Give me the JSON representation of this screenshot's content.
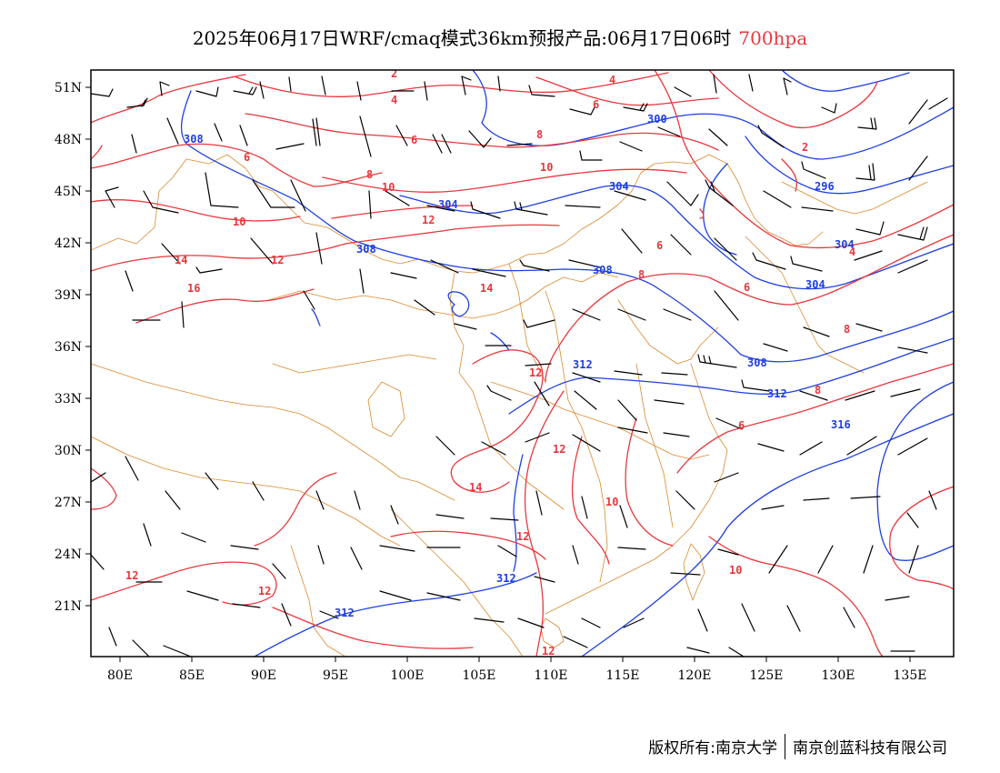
{
  "title": {
    "main": "2025年06月17日WRF/cmaq模式36km预报产品:06月17日06时",
    "level": "700hpa",
    "level_color": "#e8383d"
  },
  "map": {
    "lon_range": [
      78,
      138
    ],
    "lat_range": [
      17.5,
      52
    ],
    "lat_ticks": [
      "51N",
      "48N",
      "45N",
      "42N",
      "39N",
      "36N",
      "33N",
      "30N",
      "27N",
      "24N",
      "21N"
    ],
    "lon_ticks": [
      "80E",
      "85E",
      "90E",
      "95E",
      "100E",
      "105E",
      "110E",
      "115E",
      "120E",
      "125E",
      "130E",
      "135E"
    ],
    "colors": {
      "height": "#1f3fe0",
      "temperature": "#e8383d",
      "boundary": "#d9892d",
      "wind": "#000000"
    },
    "height_labels": [
      "308",
      "300",
      "304",
      "296",
      "308",
      "308",
      "304",
      "304",
      "312",
      "308",
      "312",
      "316",
      "312",
      "312"
    ],
    "temperature_labels": [
      "2",
      "4",
      "4",
      "6",
      "6",
      "8",
      "8",
      "6",
      "10",
      "10",
      "10",
      "12",
      "14",
      "16",
      "14",
      "8",
      "6",
      "2",
      "4",
      "6",
      "8",
      "8",
      "6",
      "12",
      "12",
      "14",
      "12",
      "10",
      "12",
      "12",
      "12",
      "10",
      "12"
    ]
  },
  "footer": {
    "copyright": "版权所有:南京大学",
    "company": "南京创蓝科技有限公司"
  }
}
